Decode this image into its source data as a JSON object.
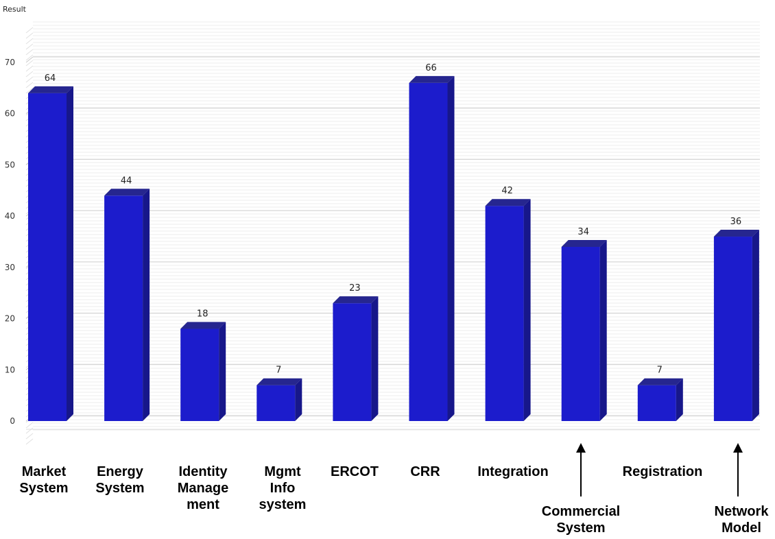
{
  "chart_data": {
    "type": "bar",
    "ylabel": "Result",
    "ylim": [
      0,
      70
    ],
    "yticks": [
      0,
      10,
      20,
      30,
      40,
      50,
      60,
      70
    ],
    "grid": true,
    "categories": [
      "Market System",
      "Energy System",
      "Identity Management",
      "Mgmt Info system",
      "ERCOT",
      "CRR",
      "Integration",
      "Commercial System",
      "Registration",
      "Network Model"
    ],
    "category_label_lines": [
      [
        "Market",
        "System"
      ],
      [
        "Energy",
        "System"
      ],
      [
        "Identity",
        "Manage",
        "ment"
      ],
      [
        "Mgmt",
        "Info",
        "system"
      ],
      [
        "ERCOT"
      ],
      [
        "CRR"
      ],
      [
        "Integration"
      ],
      [
        "Commercial",
        "System"
      ],
      [
        "Registration"
      ],
      [
        "Network",
        "Model"
      ]
    ],
    "values": [
      64,
      44,
      18,
      7,
      23,
      66,
      42,
      34,
      7,
      36
    ],
    "bar_color": "#1c1ccc",
    "bar_side_color": "#17178a",
    "bar_top_color": "#26268f"
  }
}
